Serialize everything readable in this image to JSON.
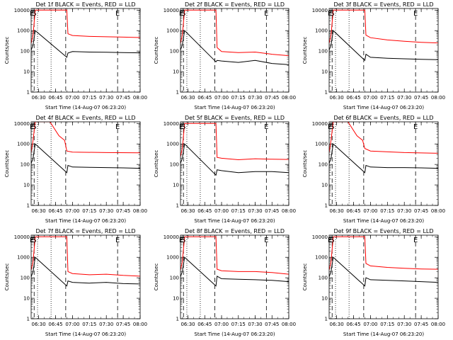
{
  "figure": {
    "background": "#ffffff",
    "axis_color": "#000000",
    "series_colors": {
      "events": "#000000",
      "lld": "#ff0000"
    },
    "ylabel": "Counts/sec",
    "xlabel": "Start Time (14-Aug-07 06:23:20)",
    "xticks": [
      "06:30",
      "06:45",
      "07:00",
      "07:15",
      "07:30",
      "07:45",
      "08:00"
    ],
    "yticks": [
      "1",
      "10",
      "100",
      "1000",
      "10000"
    ]
  },
  "chart_data": [
    {
      "type": "line",
      "title": "Det 1f BLACK = Events, RED = LLD",
      "xlabel": "Start Time (14-Aug-07 06:23:20)",
      "ylabel": "Counts/sec",
      "xlim": [
        "06:23:20",
        "08:00"
      ],
      "ylim": [
        1,
        12000
      ],
      "yscale": "log",
      "markers": [
        {
          "label": "E",
          "time": "06:24"
        },
        {
          "label": "S",
          "time": "06:26"
        },
        {
          "label": "E",
          "time": "07:40"
        }
      ],
      "vlines_dashed": [
        "06:26",
        "06:54",
        "07:40"
      ],
      "vlines_dotted": [
        "06:29",
        "06:41"
      ],
      "series": [
        {
          "name": "events",
          "color": "#000000",
          "x": [
            "06:23",
            "06:25",
            "06:27",
            "06:55",
            "06:56",
            "07:00",
            "07:15",
            "07:30",
            "07:45",
            "08:00"
          ],
          "y": [
            100,
            200,
            1000,
            50,
            80,
            95,
            90,
            88,
            85,
            82
          ]
        },
        {
          "name": "lld",
          "color": "#ff0000",
          "x": [
            "06:23",
            "06:25",
            "06:27",
            "06:55",
            "06:56",
            "07:00",
            "07:15",
            "07:30",
            "07:45",
            "08:00"
          ],
          "y": [
            200,
            600,
            10000,
            10000,
            700,
            580,
            520,
            500,
            480,
            460
          ]
        }
      ]
    },
    {
      "type": "line",
      "title": "Det 2f BLACK = Events, RED = LLD",
      "xlabel": "Start Time (14-Aug-07 06:23:20)",
      "ylabel": "Counts/sec",
      "xlim": [
        "06:23:20",
        "08:00"
      ],
      "ylim": [
        1,
        12000
      ],
      "yscale": "log",
      "markers": [
        {
          "label": "E",
          "time": "06:24"
        },
        {
          "label": "S",
          "time": "06:26"
        },
        {
          "label": "E",
          "time": "07:40"
        }
      ],
      "vlines_dashed": [
        "06:26",
        "06:54",
        "07:40"
      ],
      "vlines_dotted": [
        "06:29",
        "06:41"
      ],
      "series": [
        {
          "name": "events",
          "color": "#000000",
          "x": [
            "06:23",
            "06:25",
            "06:27",
            "06:55",
            "06:56",
            "07:00",
            "07:15",
            "07:30",
            "07:45",
            "08:00"
          ],
          "y": [
            100,
            200,
            1000,
            30,
            35,
            33,
            28,
            35,
            25,
            22
          ]
        },
        {
          "name": "lld",
          "color": "#ff0000",
          "x": [
            "06:23",
            "06:25",
            "06:27",
            "06:55",
            "06:56",
            "07:00",
            "07:15",
            "07:30",
            "07:45",
            "08:00"
          ],
          "y": [
            200,
            600,
            10000,
            10000,
            150,
            95,
            85,
            90,
            70,
            60
          ]
        }
      ]
    },
    {
      "type": "line",
      "title": "Det 3f BLACK = Events, RED = LLD",
      "xlabel": "Start Time (14-Aug-07 06:23:20)",
      "ylabel": "Counts/sec",
      "xlim": [
        "06:23:20",
        "08:00"
      ],
      "ylim": [
        1,
        12000
      ],
      "yscale": "log",
      "markers": [
        {
          "label": "E",
          "time": "06:24"
        },
        {
          "label": "S",
          "time": "06:26"
        },
        {
          "label": "E",
          "time": "07:40"
        }
      ],
      "vlines_dashed": [
        "06:26",
        "06:54",
        "07:40"
      ],
      "vlines_dotted": [
        "06:29",
        "06:41"
      ],
      "series": [
        {
          "name": "events",
          "color": "#000000",
          "x": [
            "06:23",
            "06:25",
            "06:27",
            "06:55",
            "06:56",
            "07:00",
            "07:15",
            "07:30",
            "07:45",
            "08:00"
          ],
          "y": [
            100,
            200,
            1000,
            35,
            70,
            50,
            45,
            42,
            40,
            38
          ]
        },
        {
          "name": "lld",
          "color": "#ff0000",
          "x": [
            "06:23",
            "06:25",
            "06:27",
            "06:55",
            "06:56",
            "07:00",
            "07:15",
            "07:30",
            "07:45",
            "08:00"
          ],
          "y": [
            200,
            600,
            10000,
            10000,
            600,
            450,
            350,
            300,
            270,
            250
          ]
        }
      ]
    },
    {
      "type": "line",
      "title": "Det 4f BLACK = Events, RED = LLD",
      "xlabel": "Start Time (14-Aug-07 06:23:20)",
      "ylabel": "Counts/sec",
      "xlim": [
        "06:23:20",
        "08:00"
      ],
      "ylim": [
        1,
        12000
      ],
      "yscale": "log",
      "markers": [
        {
          "label": "E",
          "time": "06:24"
        },
        {
          "label": "S",
          "time": "06:26"
        },
        {
          "label": "E",
          "time": "07:40"
        }
      ],
      "vlines_dashed": [
        "06:26",
        "06:54",
        "07:40"
      ],
      "vlines_dotted": [
        "06:29",
        "06:41"
      ],
      "series": [
        {
          "name": "events",
          "color": "#000000",
          "x": [
            "06:23",
            "06:25",
            "06:27",
            "06:55",
            "06:56",
            "07:00",
            "07:15",
            "07:30",
            "07:45",
            "08:00"
          ],
          "y": [
            100,
            200,
            1000,
            40,
            90,
            75,
            72,
            70,
            68,
            65
          ]
        },
        {
          "name": "lld",
          "color": "#ff0000",
          "x": [
            "06:23",
            "06:25",
            "06:27",
            "06:40",
            "06:48",
            "06:53",
            "06:55",
            "07:00",
            "07:30",
            "08:00"
          ],
          "y": [
            300,
            1500,
            12000,
            12000,
            2500,
            1500,
            450,
            400,
            380,
            370
          ]
        }
      ]
    },
    {
      "type": "line",
      "title": "Det 5f BLACK = Events, RED = LLD",
      "xlabel": "Start Time (14-Aug-07 06:23:20)",
      "ylabel": "Counts/sec",
      "xlim": [
        "06:23:20",
        "08:00"
      ],
      "ylim": [
        1,
        12000
      ],
      "yscale": "log",
      "markers": [
        {
          "label": "E",
          "time": "06:24"
        },
        {
          "label": "S",
          "time": "06:26"
        },
        {
          "label": "E",
          "time": "07:40"
        }
      ],
      "vlines_dashed": [
        "06:26",
        "06:54",
        "07:40"
      ],
      "vlines_dotted": [
        "06:29",
        "06:41"
      ],
      "series": [
        {
          "name": "events",
          "color": "#000000",
          "x": [
            "06:23",
            "06:25",
            "06:27",
            "06:55",
            "06:56",
            "07:00",
            "07:15",
            "07:30",
            "07:45",
            "08:00"
          ],
          "y": [
            100,
            200,
            1000,
            30,
            55,
            50,
            40,
            45,
            45,
            40
          ]
        },
        {
          "name": "lld",
          "color": "#ff0000",
          "x": [
            "06:23",
            "06:25",
            "06:27",
            "06:55",
            "06:56",
            "07:00",
            "07:15",
            "07:30",
            "07:45",
            "08:00"
          ],
          "y": [
            200,
            600,
            10000,
            10000,
            220,
            200,
            170,
            190,
            180,
            175
          ]
        }
      ]
    },
    {
      "type": "line",
      "title": "Det 6f BLACK = Events, RED = LLD",
      "xlabel": "Start Time (14-Aug-07 06:23:20)",
      "ylabel": "Counts/sec",
      "xlim": [
        "06:23:20",
        "08:00"
      ],
      "ylim": [
        1,
        12000
      ],
      "yscale": "log",
      "markers": [
        {
          "label": "E",
          "time": "06:24"
        },
        {
          "label": "S",
          "time": "06:26"
        },
        {
          "label": "E",
          "time": "07:40"
        }
      ],
      "vlines_dashed": [
        "06:26",
        "06:54",
        "07:40"
      ],
      "vlines_dotted": [
        "06:29",
        "06:41"
      ],
      "series": [
        {
          "name": "events",
          "color": "#000000",
          "x": [
            "06:23",
            "06:25",
            "06:27",
            "06:55",
            "06:56",
            "07:00",
            "07:15",
            "07:30",
            "07:45",
            "08:00"
          ],
          "y": [
            100,
            200,
            1000,
            40,
            90,
            75,
            70,
            70,
            68,
            65
          ]
        },
        {
          "name": "lld",
          "color": "#ff0000",
          "x": [
            "06:23",
            "06:25",
            "06:27",
            "06:40",
            "06:48",
            "06:53",
            "06:55",
            "07:00",
            "07:30",
            "08:00"
          ],
          "y": [
            300,
            1500,
            12000,
            12000,
            2500,
            1500,
            600,
            450,
            380,
            350
          ]
        }
      ]
    },
    {
      "type": "line",
      "title": "Det 7f BLACK = Events, RED = LLD",
      "xlabel": "Start Time (14-Aug-07 06:23:20)",
      "ylabel": "Counts/sec",
      "xlim": [
        "06:23:20",
        "08:00"
      ],
      "ylim": [
        1,
        12000
      ],
      "yscale": "log",
      "markers": [
        {
          "label": "E",
          "time": "06:24"
        },
        {
          "label": "S",
          "time": "06:26"
        },
        {
          "label": "E",
          "time": "07:40"
        }
      ],
      "vlines_dashed": [
        "06:26",
        "06:54",
        "07:40"
      ],
      "vlines_dotted": [
        "06:29",
        "06:41"
      ],
      "series": [
        {
          "name": "events",
          "color": "#000000",
          "x": [
            "06:23",
            "06:25",
            "06:27",
            "06:55",
            "06:56",
            "07:00",
            "07:15",
            "07:30",
            "07:45",
            "08:00"
          ],
          "y": [
            100,
            200,
            1000,
            40,
            70,
            60,
            55,
            60,
            52,
            50
          ]
        },
        {
          "name": "lld",
          "color": "#ff0000",
          "x": [
            "06:23",
            "06:25",
            "06:27",
            "06:55",
            "06:56",
            "07:00",
            "07:15",
            "07:30",
            "07:45",
            "08:00"
          ],
          "y": [
            200,
            600,
            10000,
            10000,
            200,
            160,
            140,
            150,
            130,
            120
          ]
        }
      ]
    },
    {
      "type": "line",
      "title": "Det 8f BLACK = Events, RED = LLD",
      "xlabel": "Start Time (14-Aug-07 06:23:20)",
      "ylabel": "Counts/sec",
      "xlim": [
        "06:23:20",
        "08:00"
      ],
      "ylim": [
        1,
        12000
      ],
      "yscale": "log",
      "markers": [
        {
          "label": "E",
          "time": "06:24"
        },
        {
          "label": "S",
          "time": "06:26"
        },
        {
          "label": "E",
          "time": "07:40"
        }
      ],
      "vlines_dashed": [
        "06:26",
        "06:54",
        "07:40"
      ],
      "vlines_dotted": [
        "06:29",
        "06:41"
      ],
      "series": [
        {
          "name": "events",
          "color": "#000000",
          "x": [
            "06:23",
            "06:25",
            "06:27",
            "06:55",
            "06:56",
            "07:00",
            "07:15",
            "07:30",
            "07:45",
            "08:00"
          ],
          "y": [
            100,
            200,
            1000,
            40,
            120,
            90,
            85,
            80,
            75,
            65
          ]
        },
        {
          "name": "lld",
          "color": "#ff0000",
          "x": [
            "06:23",
            "06:25",
            "06:27",
            "06:55",
            "06:56",
            "07:00",
            "07:15",
            "07:30",
            "07:45",
            "08:00"
          ],
          "y": [
            200,
            600,
            10000,
            10000,
            260,
            220,
            200,
            200,
            180,
            150
          ]
        }
      ]
    },
    {
      "type": "line",
      "title": "Det 9f BLACK = Events, RED = LLD",
      "xlabel": "Start Time (14-Aug-07 06:23:20)",
      "ylabel": "Counts/sec",
      "xlim": [
        "06:23:20",
        "08:00"
      ],
      "ylim": [
        1,
        12000
      ],
      "yscale": "log",
      "markers": [
        {
          "label": "E",
          "time": "06:24"
        },
        {
          "label": "S",
          "time": "06:26"
        },
        {
          "label": "E",
          "time": "07:40"
        }
      ],
      "vlines_dashed": [
        "06:26",
        "06:54",
        "07:40"
      ],
      "vlines_dotted": [
        "06:29",
        "06:41"
      ],
      "series": [
        {
          "name": "events",
          "color": "#000000",
          "x": [
            "06:23",
            "06:25",
            "06:27",
            "06:55",
            "06:56",
            "07:00",
            "07:15",
            "07:30",
            "07:45",
            "08:00"
          ],
          "y": [
            100,
            200,
            1000,
            40,
            100,
            80,
            75,
            70,
            65,
            60
          ]
        },
        {
          "name": "lld",
          "color": "#ff0000",
          "x": [
            "06:23",
            "06:25",
            "06:27",
            "06:55",
            "06:56",
            "07:00",
            "07:15",
            "07:30",
            "07:45",
            "08:00"
          ],
          "y": [
            200,
            600,
            10000,
            10000,
            500,
            380,
            320,
            290,
            270,
            260
          ]
        }
      ]
    }
  ]
}
